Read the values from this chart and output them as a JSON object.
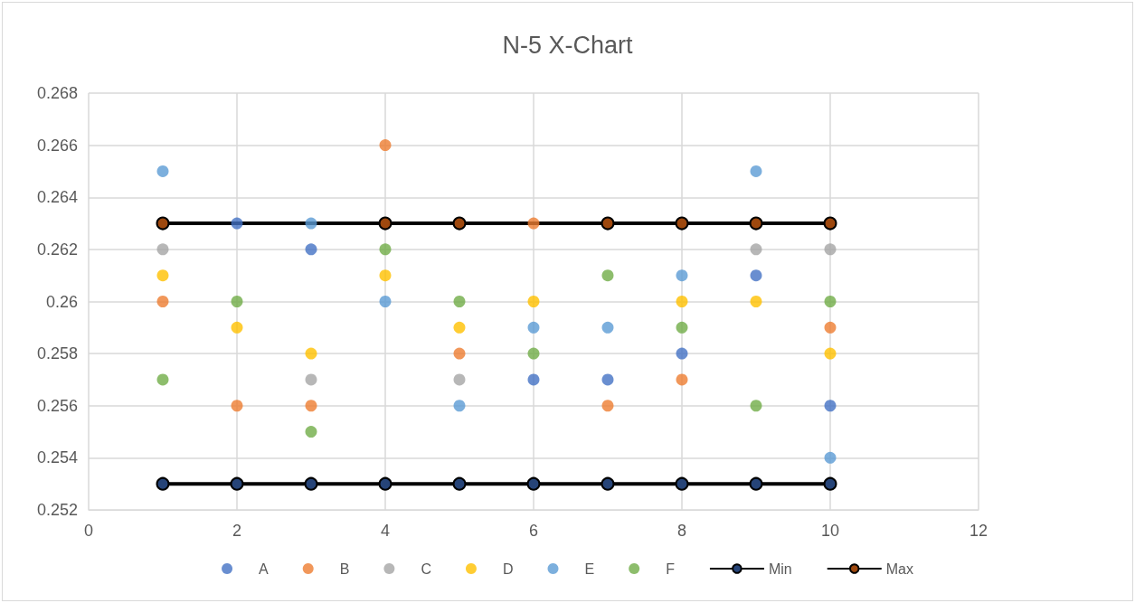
{
  "chart_data": {
    "type": "scatter",
    "title": "N-5 X-Chart",
    "x": [
      1,
      2,
      3,
      4,
      5,
      6,
      7,
      8,
      9,
      10
    ],
    "series": [
      {
        "name": "A",
        "color": "#4472c4",
        "values": [
          null,
          0.263,
          0.262,
          null,
          null,
          0.257,
          0.257,
          0.258,
          0.261,
          0.256
        ]
      },
      {
        "name": "B",
        "color": "#ed7d31",
        "values": [
          0.26,
          0.256,
          0.256,
          0.266,
          0.258,
          0.263,
          0.256,
          0.257,
          null,
          0.259
        ]
      },
      {
        "name": "C",
        "color": "#a5a5a5",
        "values": [
          0.262,
          null,
          0.257,
          null,
          0.257,
          null,
          null,
          null,
          0.262,
          0.262
        ]
      },
      {
        "name": "D",
        "color": "#ffc000",
        "values": [
          0.261,
          0.259,
          0.258,
          0.261,
          0.259,
          0.26,
          null,
          0.26,
          0.26,
          0.258
        ]
      },
      {
        "name": "E",
        "color": "#5b9bd5",
        "values": [
          0.265,
          null,
          0.263,
          0.26,
          0.256,
          0.259,
          0.259,
          0.261,
          0.265,
          0.254
        ]
      },
      {
        "name": "F",
        "color": "#70ad47",
        "values": [
          0.257,
          0.26,
          0.255,
          0.262,
          0.26,
          0.258,
          0.261,
          0.259,
          0.256,
          0.26
        ]
      },
      {
        "name": "Min",
        "type": "line",
        "color": "#000000",
        "colors": [
          "#264478",
          "#264478",
          "#264478",
          "#264478",
          "#264478",
          "#264478",
          "#264478",
          "#264478",
          "#264478",
          "#264478"
        ],
        "values": [
          0.253,
          0.253,
          0.253,
          0.253,
          0.253,
          0.253,
          0.253,
          0.253,
          0.253,
          0.253
        ]
      },
      {
        "name": "Max",
        "type": "line",
        "color": "#000000",
        "colors": [
          "#9e480e",
          "#9e480e",
          "#9e480e",
          "#9e480e",
          "#9e480e",
          "#9e480e",
          "#9e480e",
          "#9e480e",
          "#9e480e",
          "#9e480e"
        ],
        "values": [
          0.263,
          null,
          null,
          0.263,
          0.263,
          null,
          0.263,
          0.263,
          0.263,
          0.263
        ]
      }
    ],
    "xlim": [
      0,
      12
    ],
    "xticks": [
      0,
      2,
      4,
      6,
      8,
      10,
      12
    ],
    "ylim": [
      0.252,
      0.268
    ],
    "yticks": [
      0.252,
      0.254,
      0.256,
      0.258,
      0.26,
      0.262,
      0.264,
      0.266,
      0.268
    ],
    "grid": true,
    "legend": "bottom",
    "marker": "circle"
  }
}
